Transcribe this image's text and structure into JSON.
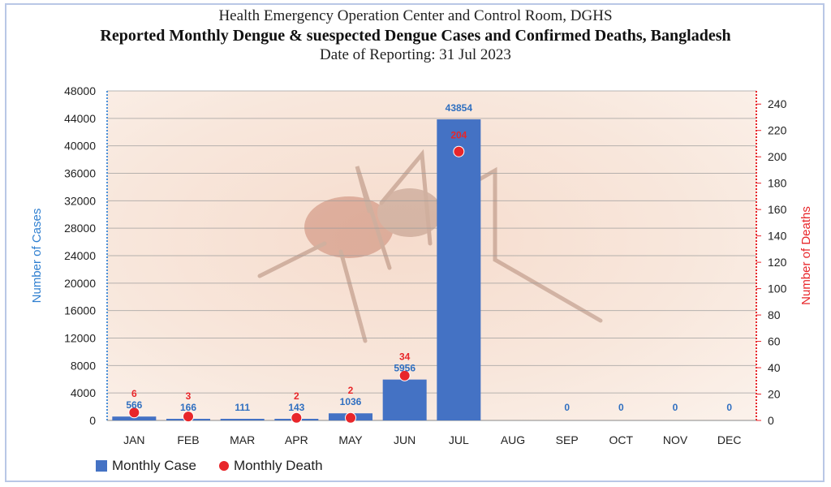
{
  "header": {
    "line1": "Health Emergency Operation Center and Control Room, DGHS",
    "line2": "Reported Monthly Dengue & suespected Dengue Cases and Confirmed Deaths, Bangladesh",
    "line3": "Date of Reporting: 31 Jul 2023"
  },
  "chart_data": {
    "type": "bar",
    "categories": [
      "JAN",
      "FEB",
      "MAR",
      "APR",
      "MAY",
      "JUN",
      "JUL",
      "AUG",
      "SEP",
      "OCT",
      "NOV",
      "DEC"
    ],
    "series": [
      {
        "name": "Monthly Case",
        "axis": "left",
        "values": [
          566,
          166,
          111,
          143,
          1036,
          5956,
          43854,
          null,
          0,
          0,
          0,
          0
        ],
        "labels": [
          "566",
          "166",
          "111",
          "143",
          "1036",
          "5956",
          "43854",
          "",
          "0",
          "0",
          "0",
          "0"
        ],
        "color": "#4472c4"
      },
      {
        "name": "Monthly Death",
        "axis": "right",
        "type": "scatter",
        "values": [
          6,
          3,
          null,
          2,
          2,
          34,
          204,
          null,
          null,
          null,
          null,
          null
        ],
        "labels": [
          "6",
          "3",
          "",
          "2",
          "2",
          "34",
          "204",
          "",
          "",
          "",
          "",
          ""
        ],
        "color": "#e8262a"
      }
    ],
    "ylabel": "Number of Cases",
    "ylim": [
      0,
      48000
    ],
    "yticks": [
      "0",
      "4000",
      "8000",
      "12000",
      "16000",
      "20000",
      "24000",
      "28000",
      "32000",
      "36000",
      "40000",
      "44000",
      "48000"
    ],
    "y2label": "Number of Deaths",
    "y2lim": [
      0,
      250
    ],
    "y2ticks": [
      "0",
      "20",
      "40",
      "60",
      "80",
      "100",
      "120",
      "140",
      "160",
      "180",
      "200",
      "220",
      "240"
    ],
    "grid": true,
    "legend_position": "bottom-left"
  }
}
